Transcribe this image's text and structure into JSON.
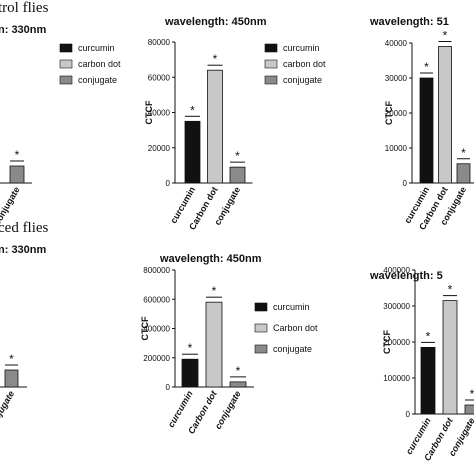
{
  "labels": [
    "trol flies",
    "ced flies"
  ],
  "chart_data": [
    {
      "type": "bar",
      "title": "n: 330nm",
      "categories": [
        "conjugate"
      ],
      "annotations": [
        "*"
      ],
      "legend": [
        {
          "name": "curcumin",
          "color": "#111111"
        },
        {
          "name": "carbon dot",
          "color": "#c8c8c8"
        },
        {
          "name": "conjugate",
          "color": "#8a8a8a"
        }
      ]
    },
    {
      "type": "bar",
      "title": "wavelength: 450nm",
      "y_label": "CTCF",
      "categories": [
        "curcumin",
        "Carbon dot",
        "conjugate"
      ],
      "values": [
        35000,
        64000,
        9000
      ],
      "colors": [
        "#111111",
        "#c8c8c8",
        "#8a8a8a"
      ],
      "annotations": [
        "*",
        "*",
        "*"
      ],
      "ylim": [
        0,
        80000
      ],
      "yticks": [
        0,
        20000,
        40000,
        60000,
        80000
      ],
      "legend": [
        {
          "name": "curcumin",
          "color": "#111111"
        },
        {
          "name": "carbon dot",
          "color": "#c8c8c8"
        },
        {
          "name": "conjugate",
          "color": "#8a8a8a"
        }
      ]
    },
    {
      "type": "bar",
      "title": "wavelength: 51",
      "y_label": "CTCF",
      "categories": [
        "curcumin",
        "Carbon dot",
        "conjugate"
      ],
      "values": [
        30000,
        39000,
        5500
      ],
      "colors": [
        "#111111",
        "#c8c8c8",
        "#8a8a8a"
      ],
      "annotations": [
        "*",
        "*",
        "*"
      ],
      "ylim": [
        0,
        40000
      ],
      "yticks": [
        0,
        10000,
        20000,
        30000,
        40000
      ]
    },
    {
      "type": "bar",
      "title": "n: 330nm",
      "categories": [
        "conjugate"
      ],
      "annotations": [
        "*"
      ]
    },
    {
      "type": "bar",
      "title": "wavelength: 450nm",
      "y_label": "CTCF",
      "categories": [
        "curcumin",
        "Carbon dot",
        "conjugate"
      ],
      "values": [
        190000,
        580000,
        35000
      ],
      "colors": [
        "#111111",
        "#c8c8c8",
        "#8a8a8a"
      ],
      "annotations": [
        "*",
        "*",
        "*"
      ],
      "ylim": [
        0,
        800000
      ],
      "yticks": [
        0,
        200000,
        400000,
        600000,
        800000
      ],
      "legend": [
        {
          "name": "curcumin",
          "color": "#111111"
        },
        {
          "name": "Carbon dot",
          "color": "#c8c8c8"
        },
        {
          "name": "conjugate",
          "color": "#8a8a8a"
        }
      ]
    },
    {
      "type": "bar",
      "title": "wavelength: 5",
      "y_label": "CTCF",
      "categories": [
        "curcumin",
        "Carbon dot",
        "conjugate"
      ],
      "values": [
        185000,
        315000,
        25000
      ],
      "colors": [
        "#111111",
        "#c8c8c8",
        "#8a8a8a"
      ],
      "annotations": [
        "*",
        "*",
        "*"
      ],
      "ylim": [
        0,
        400000
      ],
      "yticks": [
        0,
        100000,
        200000,
        300000,
        400000
      ]
    }
  ]
}
